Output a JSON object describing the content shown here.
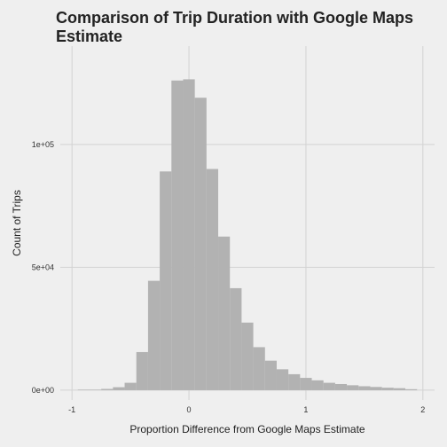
{
  "chart_data": {
    "type": "bar",
    "title": "Comparison of Trip Duration with Google Maps Estimate",
    "xlabel": "Proportion Difference from Google Maps Estimate",
    "ylabel": "Count of Trips",
    "xlim": [
      -1.1,
      2.1
    ],
    "ylim": [
      -4000,
      140000
    ],
    "x_ticks": [
      {
        "value": -1,
        "label": "-1"
      },
      {
        "value": 0,
        "label": "0"
      },
      {
        "value": 1,
        "label": "1"
      },
      {
        "value": 2,
        "label": "2"
      }
    ],
    "y_ticks": [
      {
        "value": 0,
        "label": "0e+00"
      },
      {
        "value": 50000,
        "label": "5e+04"
      },
      {
        "value": 100000,
        "label": "1e+05"
      }
    ],
    "bin_width": 0.1,
    "bin_starts": [
      -0.95,
      -0.85,
      -0.75,
      -0.65,
      -0.55,
      -0.45,
      -0.35,
      -0.25,
      -0.15,
      -0.05,
      0.05,
      0.15,
      0.25,
      0.35,
      0.45,
      0.55,
      0.65,
      0.75,
      0.85,
      0.95,
      1.05,
      1.15,
      1.25,
      1.35,
      1.45,
      1.55,
      1.65,
      1.75,
      1.85
    ],
    "values": [
      0,
      200,
      500,
      1200,
      3000,
      15500,
      44500,
      89000,
      126000,
      126500,
      119000,
      90000,
      62500,
      41500,
      27500,
      17500,
      12000,
      8500,
      6500,
      5000,
      4000,
      3000,
      2500,
      2000,
      1600,
      1300,
      1000,
      800,
      400
    ],
    "bar_color": "#b2b2b2",
    "background_color": "#efefef",
    "grid": true,
    "legend": "none"
  }
}
